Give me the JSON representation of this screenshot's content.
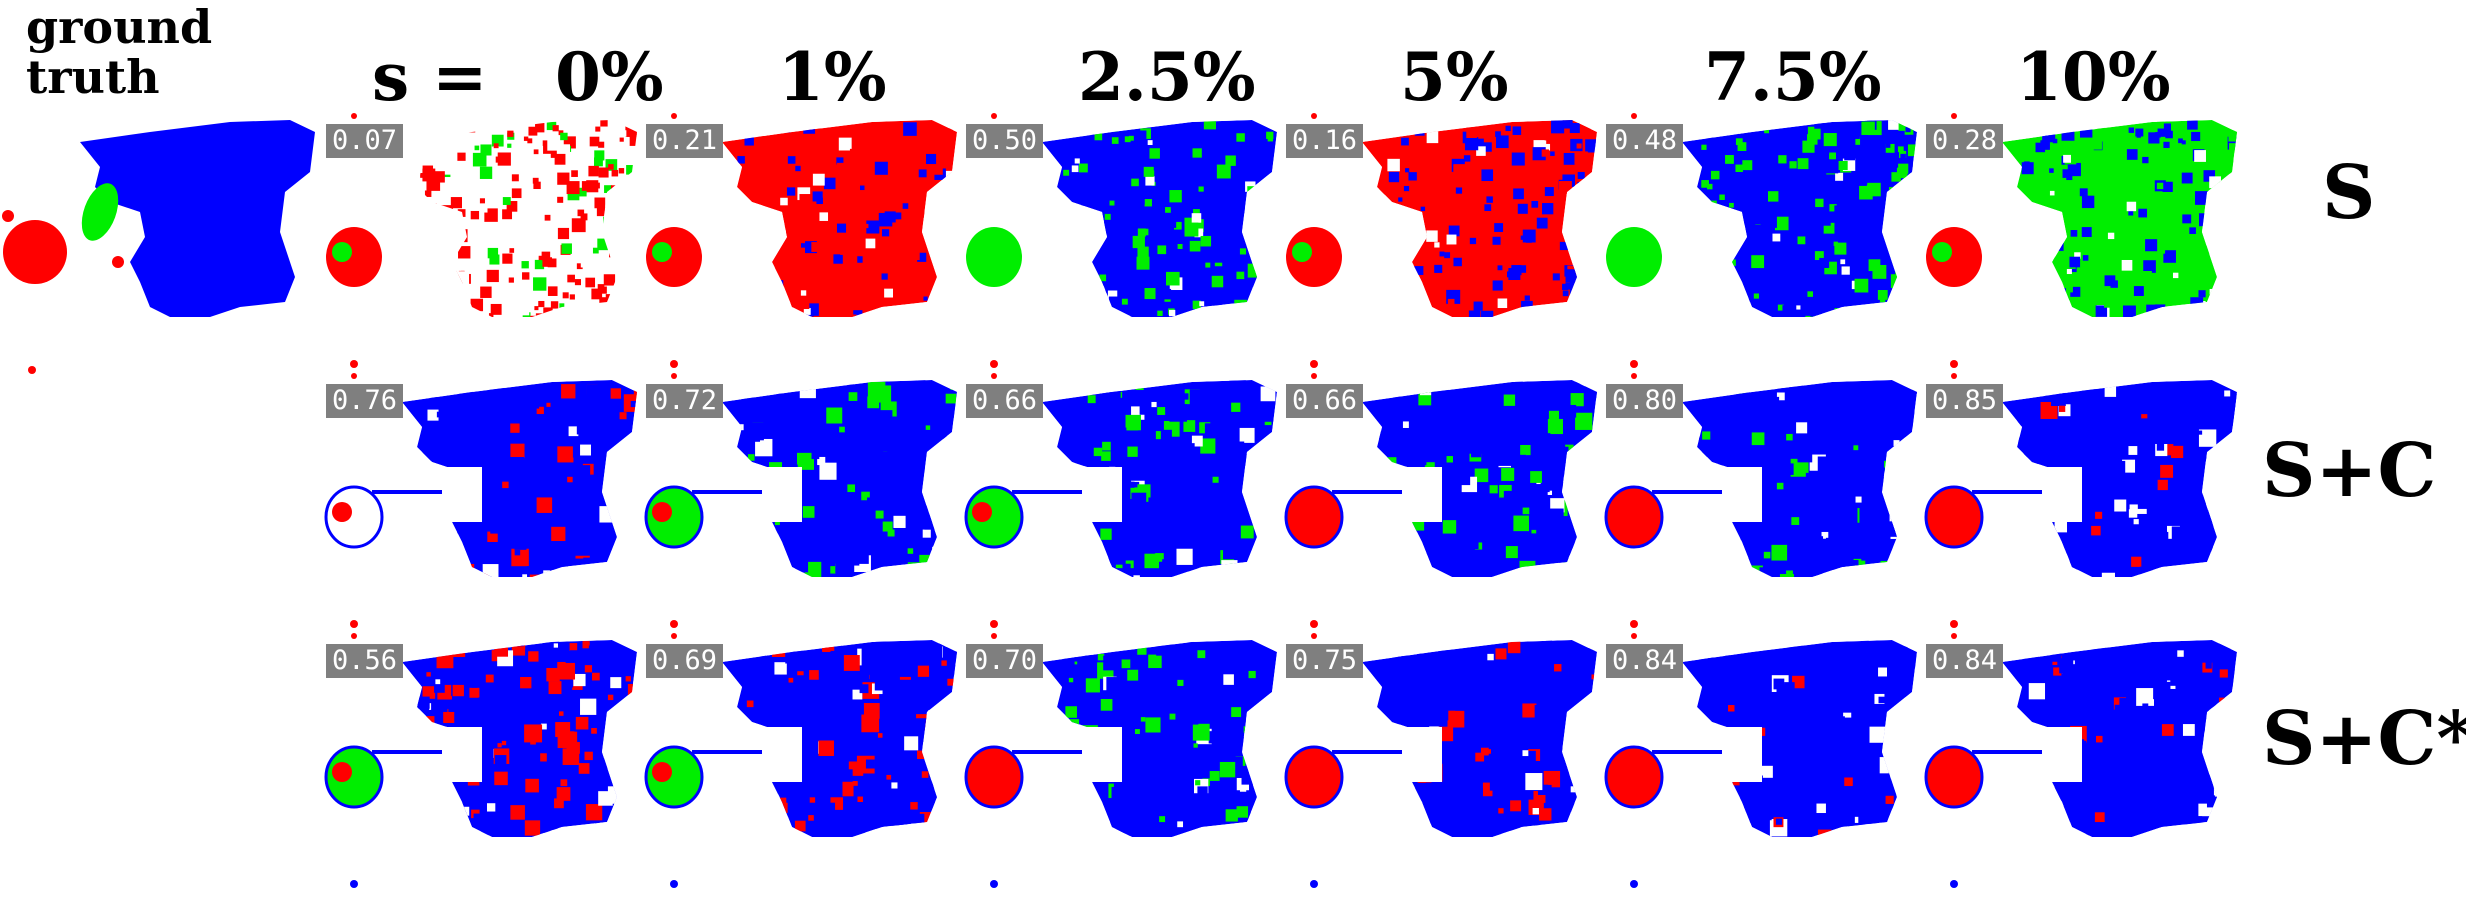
{
  "header": {
    "ground_truth": "ground\ntruth",
    "s_eq": "s =",
    "columns": [
      "0%",
      "1%",
      "2.5%",
      "5%",
      "7.5%",
      "10%"
    ]
  },
  "rows": [
    {
      "label": "S",
      "scores": [
        "0.07",
        "0.21",
        "0.50",
        "0.16",
        "0.48",
        "0.28"
      ]
    },
    {
      "label": "S+C",
      "scores": [
        "0.76",
        "0.72",
        "0.66",
        "0.66",
        "0.80",
        "0.85"
      ]
    },
    {
      "label": "S+C*",
      "scores": [
        "0.56",
        "0.69",
        "0.70",
        "0.75",
        "0.84",
        "0.84"
      ]
    }
  ],
  "colors": {
    "class_a": "#0000ff",
    "class_b": "#ff0000",
    "class_c": "#00ee00",
    "score_bg": "#7f7f7f"
  }
}
